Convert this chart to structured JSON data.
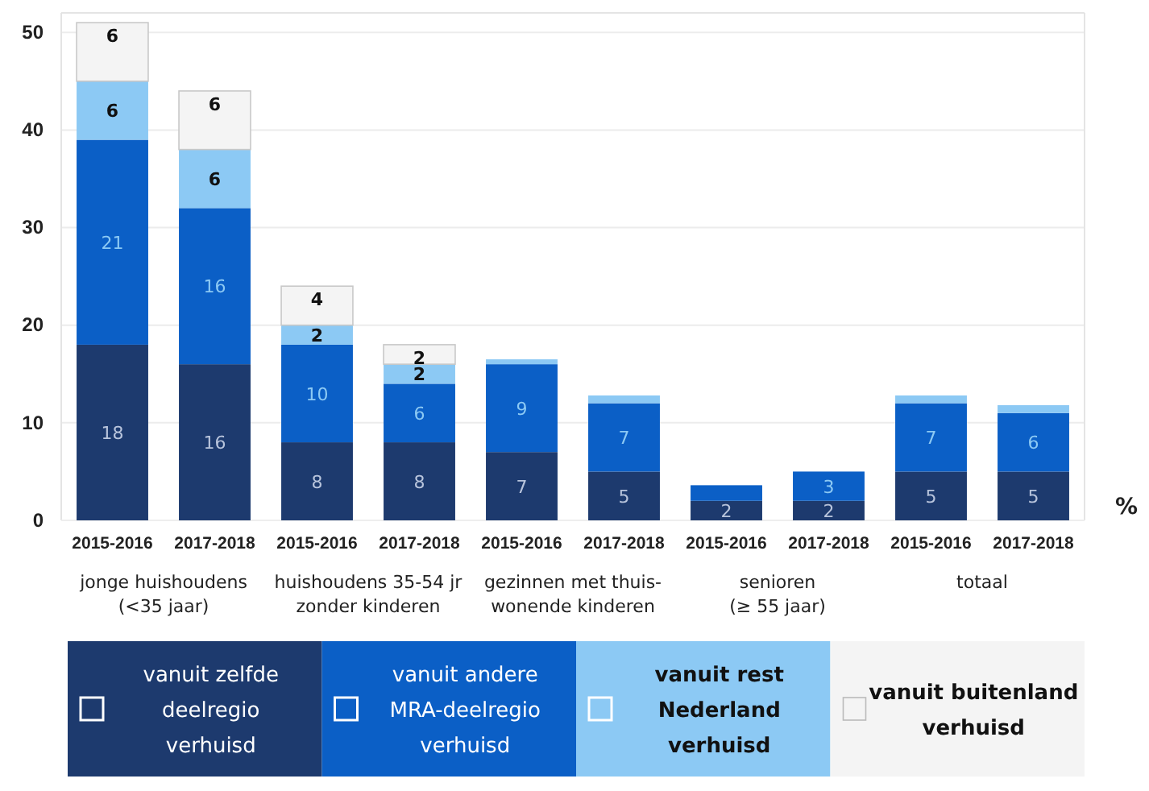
{
  "chart_data": {
    "type": "bar",
    "stacked": true,
    "categories": [
      "2015-2016",
      "2017-2018",
      "2015-2016",
      "2017-2018",
      "2015-2016",
      "2017-2018",
      "2015-2016",
      "2017-2018",
      "2015-2016",
      "2017-2018"
    ],
    "series": [
      {
        "name": "vanuit zelfde deelregio verhuisd",
        "color": "#1d3a6e",
        "values": [
          18,
          16,
          8,
          8,
          7,
          5,
          2,
          2,
          5,
          5
        ],
        "value_labels": [
          "18",
          "16",
          "8",
          "8",
          "7",
          "5",
          "2",
          "2",
          "5",
          "5"
        ]
      },
      {
        "name": "vanuit andere MRA-deelregio verhuisd",
        "color": "#0b5fc6",
        "values": [
          21,
          16,
          10,
          6,
          9,
          7,
          1.6,
          3,
          7,
          6
        ],
        "value_labels": [
          "21",
          "16",
          "10",
          "6",
          "9",
          "7",
          null,
          "3",
          "7",
          "6"
        ]
      },
      {
        "name": "vanuit rest Nederland verhuisd",
        "color": "#8cc9f4",
        "values": [
          6,
          6,
          2,
          2,
          0.5,
          0.8,
          null,
          null,
          0.8,
          0.8
        ],
        "value_labels": [
          "6",
          "6",
          "2",
          "2",
          null,
          null,
          null,
          null,
          null,
          null
        ]
      },
      {
        "name": "vanuit buitenland verhuisd",
        "color": "#f4f4f4",
        "values": [
          6,
          6,
          4,
          2,
          null,
          null,
          null,
          null,
          null,
          null
        ],
        "value_labels": [
          "6",
          "6",
          "4",
          "2",
          null,
          null,
          null,
          null,
          null,
          null
        ]
      }
    ],
    "annotations": [
      "jonge huishoudens\n(<35 jaar)",
      "huishoudens 35-54 jr\nzonder kinderen",
      "gezinnen met thuis-\nwonende kinderen",
      "senioren\n(≥ 55 jaar)",
      "totaal"
    ],
    "ylabel": "%",
    "ylim": [
      0,
      52
    ],
    "yticks": [
      0,
      10,
      20,
      30,
      40,
      50
    ],
    "grid": "y",
    "legend": "bottom"
  }
}
